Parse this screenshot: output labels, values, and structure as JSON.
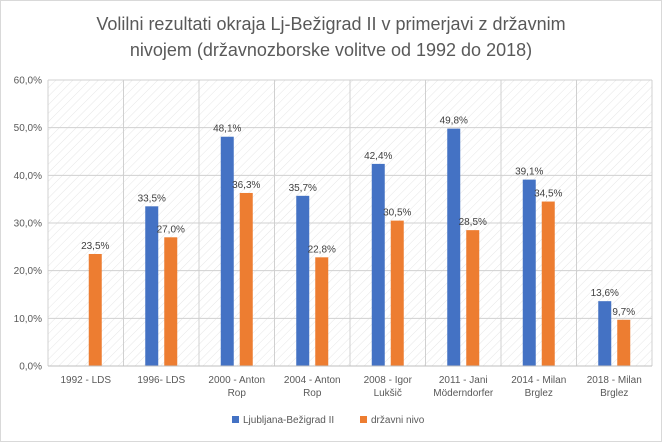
{
  "chart_data": {
    "type": "bar",
    "title_lines": [
      "Volilni rezultati okraja Lj-Bežigrad II v primerjavi z državnim",
      "nivojem (državnozborske volitve od 1992 do 2018)"
    ],
    "categories": [
      [
        "1992 - LDS"
      ],
      [
        "1996- LDS"
      ],
      [
        "2000 - Anton",
        "Rop"
      ],
      [
        "2004 - Anton",
        "Rop"
      ],
      [
        "2008 - Igor",
        "Lukšič"
      ],
      [
        "2011 - Jani",
        "Möderndorfer"
      ],
      [
        "2014 - Milan",
        "Brglez"
      ],
      [
        "2018 - Milan",
        "Brglez"
      ]
    ],
    "series": [
      {
        "name": "Ljubljana-Bežigrad II",
        "color": "#4472c4",
        "values": [
          null,
          33.5,
          48.1,
          35.7,
          42.4,
          49.8,
          39.1,
          13.6
        ],
        "labels": [
          "",
          "33,5%",
          "48,1%",
          "35,7%",
          "42,4%",
          "49,8%",
          "39,1%",
          "13,6%"
        ]
      },
      {
        "name": "državni nivo",
        "color": "#ed7d31",
        "values": [
          23.5,
          27.0,
          36.3,
          22.8,
          30.5,
          28.5,
          34.5,
          9.7
        ],
        "labels": [
          "23,5%",
          "27,0%",
          "36,3%",
          "22,8%",
          "30,5%",
          "28,5%",
          "34,5%",
          "9,7%"
        ]
      }
    ],
    "ylim": [
      0,
      60
    ],
    "yticks": [
      0,
      10,
      20,
      30,
      40,
      50,
      60
    ],
    "ytick_labels": [
      "0,0%",
      "10,0%",
      "20,0%",
      "30,0%",
      "40,0%",
      "50,0%",
      "60,0%"
    ],
    "legend_position": "bottom",
    "grid": true
  }
}
